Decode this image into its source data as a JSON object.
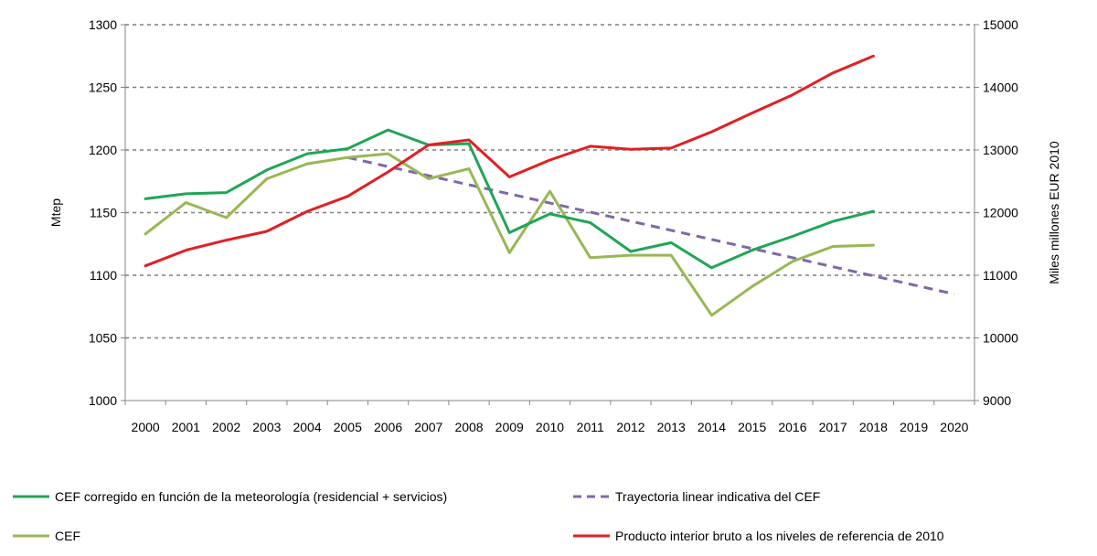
{
  "chart_data": {
    "type": "line",
    "x": [
      2000,
      2001,
      2002,
      2003,
      2004,
      2005,
      2006,
      2007,
      2008,
      2009,
      2010,
      2011,
      2012,
      2013,
      2014,
      2015,
      2016,
      2017,
      2018,
      2019,
      2020
    ],
    "y_left": {
      "label": "Mtep",
      "ylim": [
        1000,
        1300
      ],
      "ticks": [
        1000,
        1050,
        1100,
        1150,
        1200,
        1250,
        1300
      ]
    },
    "y_right": {
      "label": "Miles millones EUR 2010",
      "ylim": [
        9000,
        15000
      ],
      "ticks": [
        9000,
        10000,
        11000,
        12000,
        13000,
        14000,
        15000
      ]
    },
    "grid": "horizontal dashed",
    "legend_position": "bottom",
    "series": [
      {
        "name": "CEF corregido en función de la meteorología (residencial + servicios)",
        "axis": "left",
        "color": "#1fa557",
        "style": "solid",
        "x": [
          2000,
          2001,
          2002,
          2003,
          2004,
          2005,
          2006,
          2007,
          2008,
          2009,
          2010,
          2011,
          2012,
          2013,
          2014,
          2015,
          2016,
          2017,
          2018
        ],
        "values": [
          1161,
          1165,
          1166,
          1184,
          1197,
          1201,
          1216,
          1204,
          1205,
          1134,
          1149,
          1142,
          1119,
          1126,
          1106,
          1120,
          1131,
          1143,
          1151
        ]
      },
      {
        "name": "Trayectoria linear indicativa del CEF",
        "axis": "left",
        "color": "#8067a8",
        "style": "dashed",
        "x": [
          2005,
          2020
        ],
        "values": [
          1194,
          1085
        ]
      },
      {
        "name": "CEF",
        "axis": "left",
        "color": "#98b754",
        "style": "solid",
        "x": [
          2000,
          2001,
          2002,
          2003,
          2004,
          2005,
          2006,
          2007,
          2008,
          2009,
          2010,
          2011,
          2012,
          2013,
          2014,
          2015,
          2016,
          2017,
          2018
        ],
        "values": [
          1133,
          1158,
          1146,
          1177,
          1189,
          1194,
          1197,
          1177,
          1185,
          1118,
          1167,
          1114,
          1116,
          1116,
          1068,
          1091,
          1111,
          1123,
          1124
        ]
      },
      {
        "name": "Producto interior bruto a los niveles de referencia de 2010",
        "axis": "right",
        "color": "#e31e24",
        "style": "solid",
        "x": [
          2000,
          2001,
          2002,
          2003,
          2004,
          2005,
          2006,
          2007,
          2008,
          2009,
          2010,
          2011,
          2012,
          2013,
          2014,
          2015,
          2016,
          2017,
          2018
        ],
        "values": [
          11150,
          11400,
          11560,
          11700,
          12020,
          12260,
          12650,
          13080,
          13160,
          12570,
          12840,
          13060,
          13010,
          13030,
          13290,
          13590,
          13880,
          14230,
          14500
        ]
      }
    ],
    "legend_order": [
      0,
      1,
      2,
      3
    ]
  }
}
